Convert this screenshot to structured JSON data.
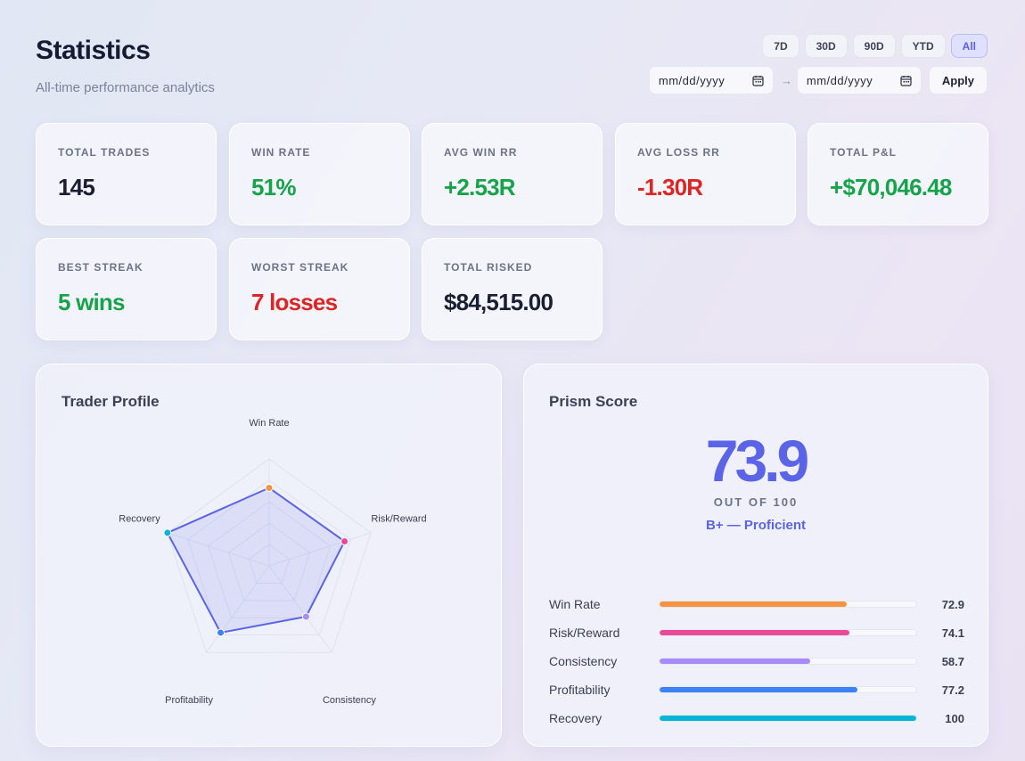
{
  "header": {
    "title": "Statistics",
    "subtitle": "All-time performance analytics"
  },
  "range_buttons": [
    {
      "label": "7D",
      "active": false
    },
    {
      "label": "30D",
      "active": false
    },
    {
      "label": "90D",
      "active": false
    },
    {
      "label": "YTD",
      "active": false
    },
    {
      "label": "All",
      "active": true
    }
  ],
  "date_filter": {
    "start_placeholder": "mm/dd/yyyy",
    "end_placeholder": "mm/dd/yyyy",
    "separator": "→",
    "apply_label": "Apply"
  },
  "stats": [
    {
      "label": "TOTAL TRADES",
      "value": "145",
      "tone": "neutral"
    },
    {
      "label": "WIN RATE",
      "value": "51%",
      "tone": "green"
    },
    {
      "label": "AVG WIN RR",
      "value": "+2.53R",
      "tone": "green"
    },
    {
      "label": "AVG LOSS RR",
      "value": "-1.30R",
      "tone": "red"
    },
    {
      "label": "TOTAL P&L",
      "value": "+$70,046.48",
      "tone": "green"
    },
    {
      "label": "BEST STREAK",
      "value": "5 wins",
      "tone": "green"
    },
    {
      "label": "WORST STREAK",
      "value": "7 losses",
      "tone": "red"
    },
    {
      "label": "TOTAL RISKED",
      "value": "$84,515.00",
      "tone": "neutral"
    }
  ],
  "trader_profile": {
    "title": "Trader Profile",
    "axes": [
      {
        "label": "Win Rate",
        "value": 72.9,
        "color": "#f59342"
      },
      {
        "label": "Risk/Reward",
        "value": 74.1,
        "color": "#ec4899"
      },
      {
        "label": "Consistency",
        "value": 58.7,
        "color": "#a78bfa"
      },
      {
        "label": "Profitability",
        "value": 77.2,
        "color": "#3b82f6"
      },
      {
        "label": "Recovery",
        "value": 100,
        "color": "#06b6d4"
      }
    ],
    "max": 100,
    "line_color": "#5b63e6"
  },
  "prism_score": {
    "title": "Prism Score",
    "score": "73.9",
    "out_of": "OUT OF 100",
    "grade": "B+ — Proficient",
    "metrics": [
      {
        "label": "Win Rate",
        "value": 72.9,
        "display": "72.9",
        "color": "#f59342"
      },
      {
        "label": "Risk/Reward",
        "value": 74.1,
        "display": "74.1",
        "color": "#ec4899"
      },
      {
        "label": "Consistency",
        "value": 58.7,
        "display": "58.7",
        "color": "#a78bfa"
      },
      {
        "label": "Profitability",
        "value": 77.2,
        "display": "77.2",
        "color": "#3b82f6"
      },
      {
        "label": "Recovery",
        "value": 100,
        "display": "100",
        "color": "#06b6d4"
      }
    ]
  }
}
